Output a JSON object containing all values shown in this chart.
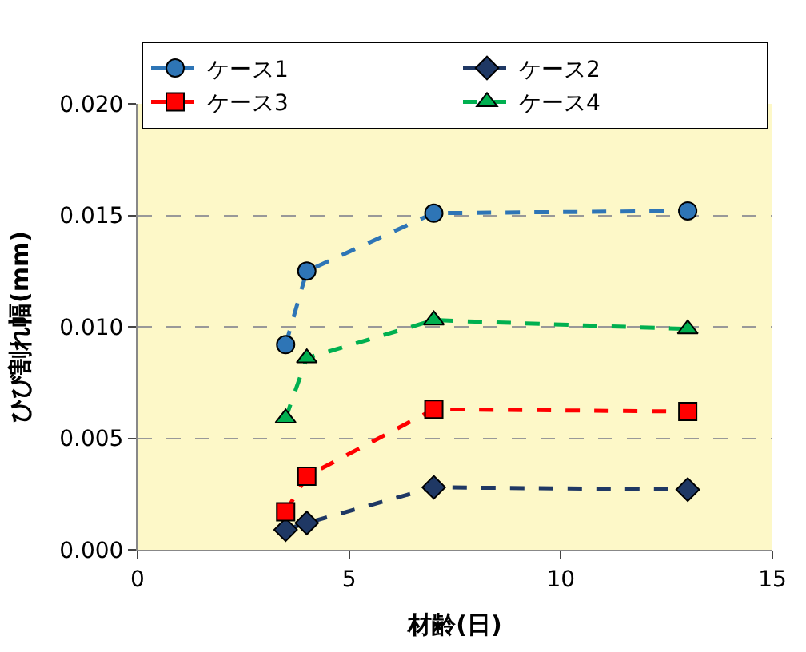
{
  "chart_data": {
    "type": "line",
    "xlabel": "材齢(日)",
    "ylabel": "ひび割れ幅(mm)",
    "x": [
      3.5,
      4,
      7,
      13
    ],
    "series": [
      {
        "name": "ケース1",
        "color": "#2e75b6",
        "marker": "circle",
        "values": [
          0.0092,
          0.0125,
          0.0151,
          0.0152
        ]
      },
      {
        "name": "ケース2",
        "color": "#1f3864",
        "marker": "diamond",
        "values": [
          0.0009,
          0.0012,
          0.0028,
          0.0027
        ]
      },
      {
        "name": "ケース3",
        "color": "#ff0000",
        "marker": "square",
        "values": [
          0.0017,
          0.0033,
          0.0063,
          0.0062
        ]
      },
      {
        "name": "ケース4",
        "color": "#00b050",
        "marker": "triangle",
        "values": [
          0.0059,
          0.0086,
          0.0103,
          0.0099
        ]
      }
    ],
    "line_style": "dashed",
    "xlim": [
      0,
      15
    ],
    "xticks": [
      0,
      5,
      10,
      15
    ],
    "ylim": [
      0,
      0.02
    ],
    "yticks": [
      {
        "value": 0,
        "label": "0.000"
      },
      {
        "value": 0.005,
        "label": "0.005"
      },
      {
        "value": 0.01,
        "label": "0.010"
      },
      {
        "value": 0.015,
        "label": "0.015"
      },
      {
        "value": 0.02,
        "label": "0.020"
      }
    ],
    "grid": "y",
    "legend": "top"
  }
}
